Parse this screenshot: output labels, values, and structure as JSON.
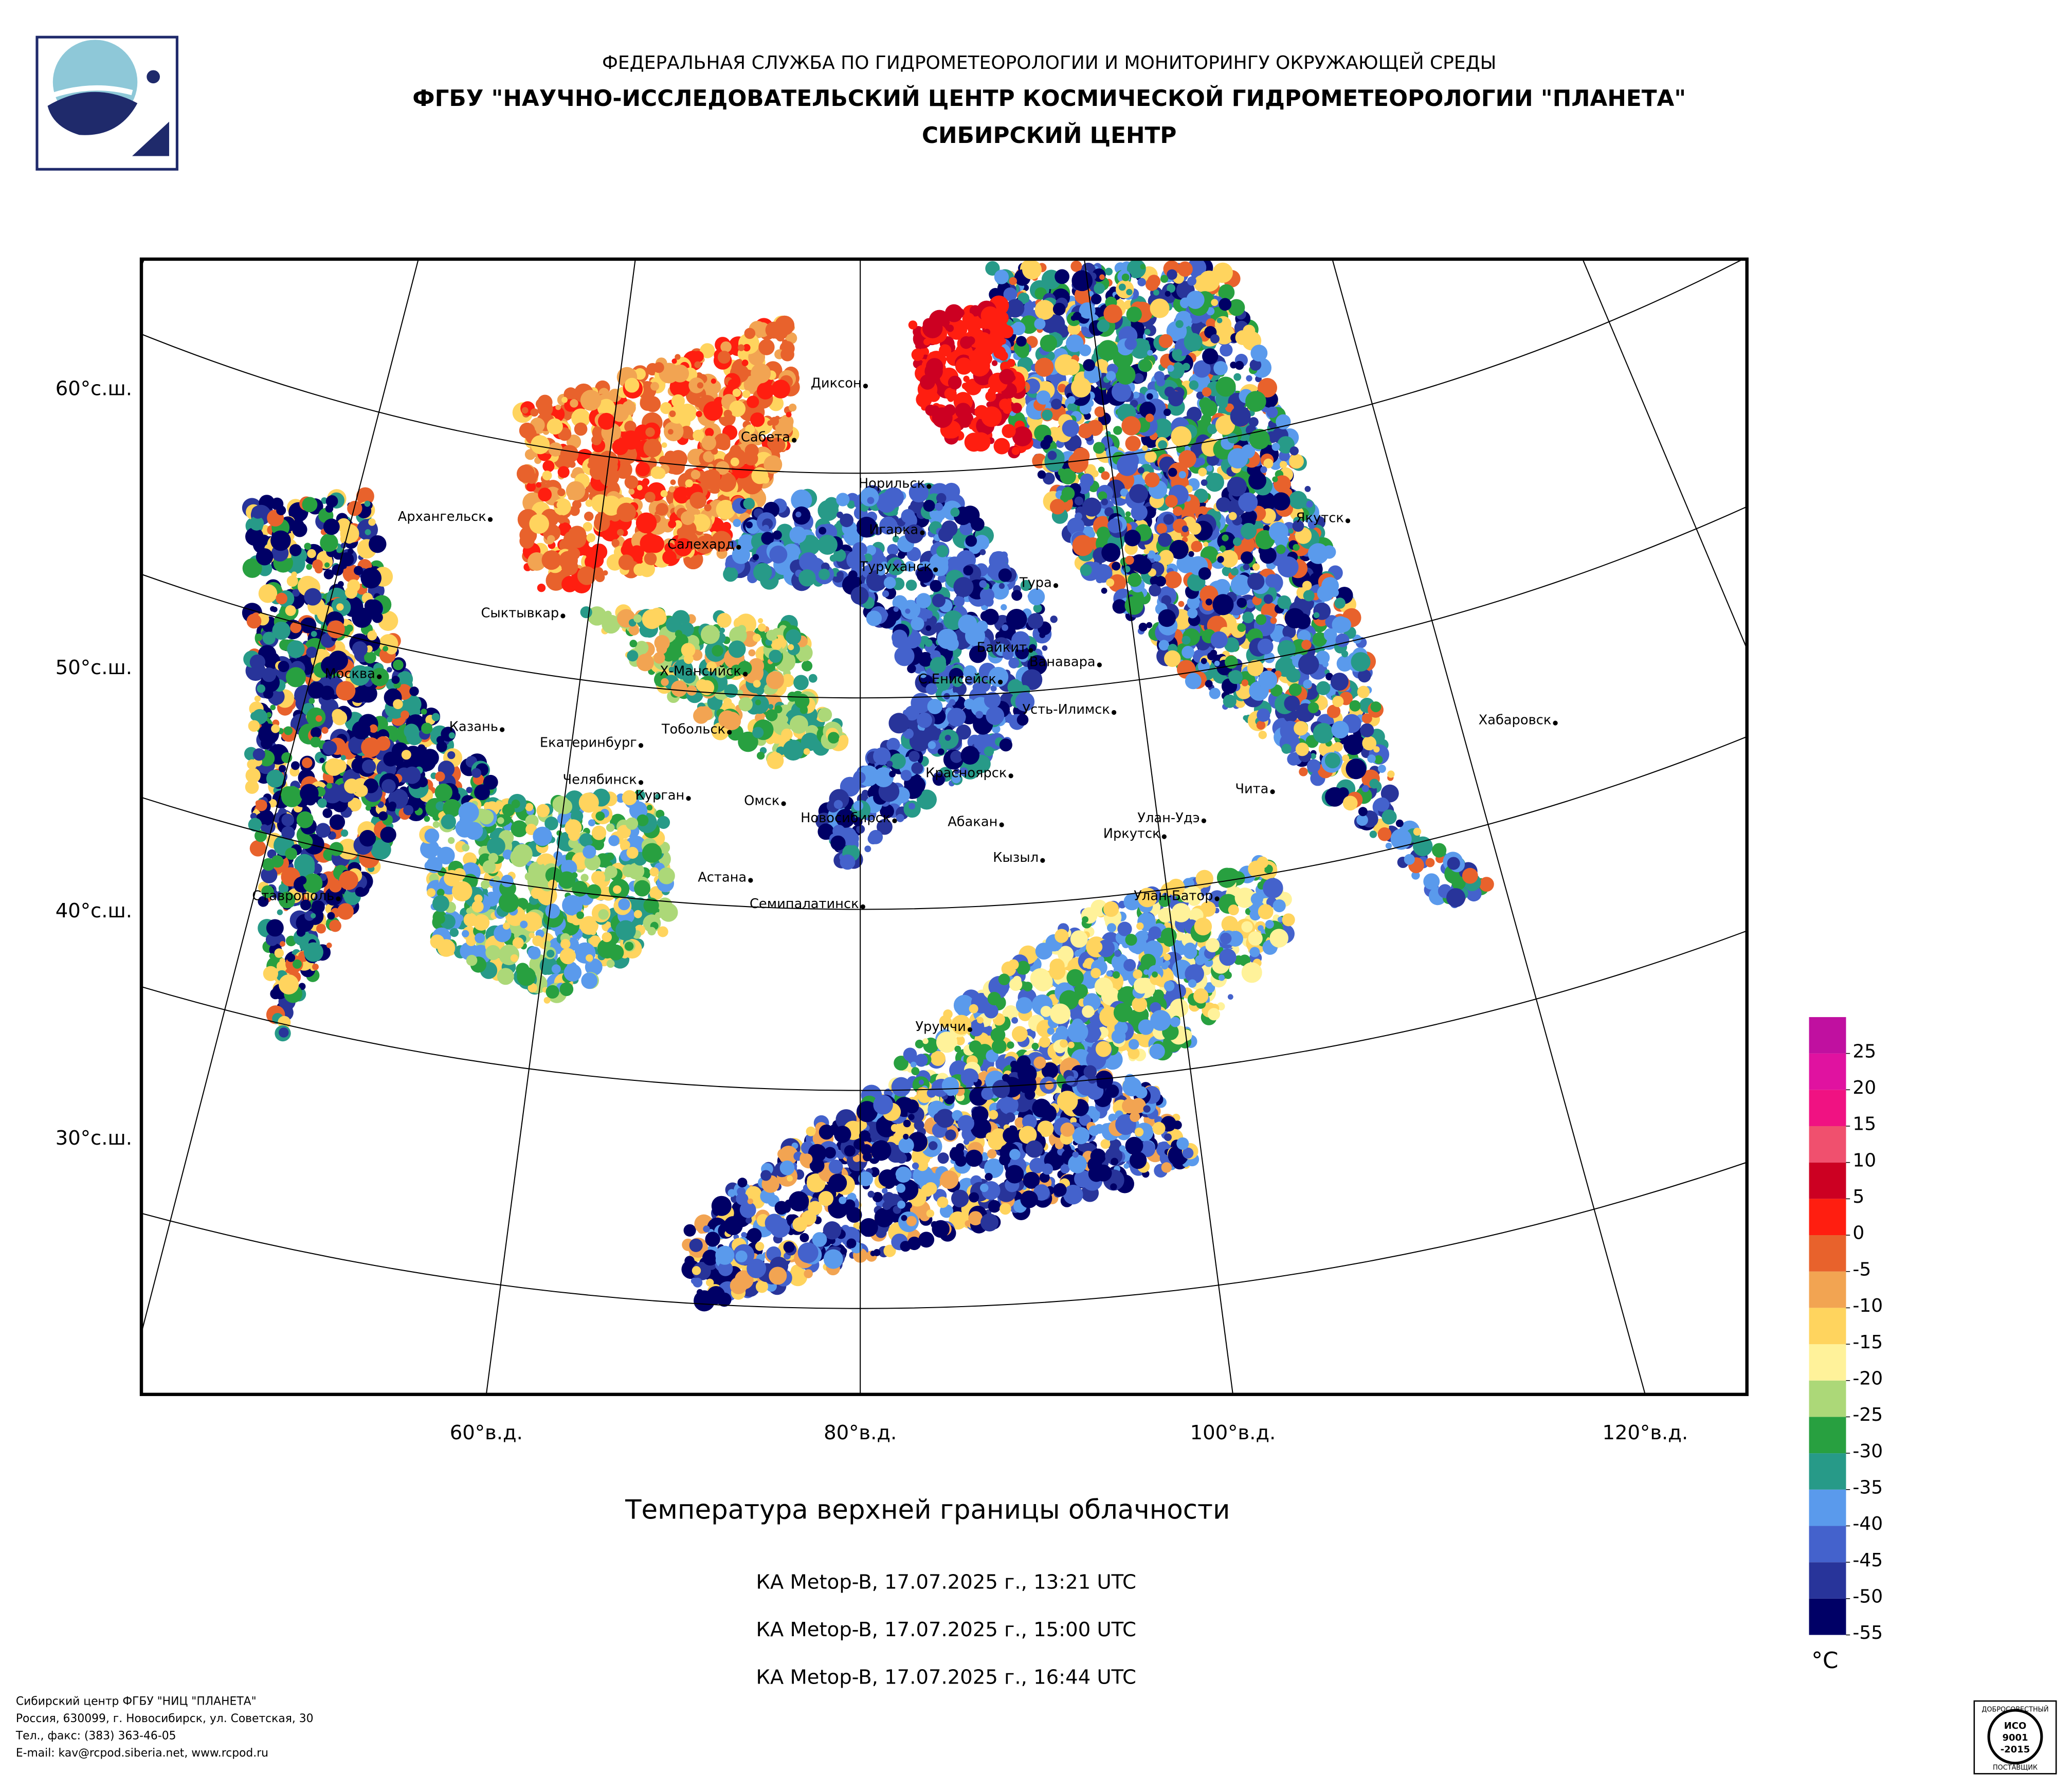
{
  "header": {
    "agency": "ФЕДЕРАЛЬНАЯ СЛУЖБА ПО ГИДРОМЕТЕОРОЛОГИИ И МОНИТОРИНГУ ОКРУЖАЮЩЕЙ СРЕДЫ",
    "institute": "ФГБУ \"НАУЧНО-ИССЛЕДОВАТЕЛЬСКИЙ ЦЕНТР КОСМИЧЕСКОЙ ГИДРОМЕТЕОРОЛОГИИ \"ПЛАНЕТА\"",
    "center": "СИБИРСКИЙ ЦЕНТР"
  },
  "map": {
    "lat_labels": [
      "60°с.ш.",
      "50°с.ш.",
      "40°с.ш.",
      "30°с.ш."
    ],
    "lon_labels": [
      "60°в.д.",
      "80°в.д.",
      "100°в.д.",
      "120°в.д."
    ],
    "cities": [
      "Диксон",
      "Сабета",
      "Норильск",
      "Архангельск",
      "Игарка",
      "Салехард",
      "Якутск",
      "Туруханск",
      "Тура",
      "Сыктывкар",
      "Байкит",
      "Ванавара",
      "Москва",
      "Х-Мансийск",
      "С.Енисейск",
      "Усть-Илимск",
      "Хабаровск",
      "Казань",
      "Тобольск",
      "Екатеринбург",
      "Красноярск",
      "Челябинск",
      "Курган",
      "Чита",
      "Омск",
      "Новосибирск",
      "Улан-Удэ",
      "Абакан",
      "Иркутск",
      "Кызыл",
      "Астана",
      "Ставрополь",
      "Улан-Батор",
      "Семипалатинск",
      "Урумчи"
    ]
  },
  "legend": {
    "unit": "°C",
    "ticks": [
      -55,
      -50,
      -45,
      -40,
      -35,
      -30,
      -25,
      -20,
      -15,
      -10,
      -5,
      0,
      5,
      10,
      15,
      20,
      25
    ],
    "colors": [
      "#000066",
      "#28349a",
      "#4462cc",
      "#5a9aec",
      "#279a88",
      "#28a040",
      "#acd878",
      "#fff29a",
      "#ffd45e",
      "#f2a452",
      "#e8622c",
      "#ff1e10",
      "#cc0022",
      "#f0506e",
      "#f01282",
      "#e012a0",
      "#c010a0"
    ]
  },
  "caption": {
    "title": "Температура верхней границы облачности",
    "passes": [
      "КА Metop-B, 17.07.2025 г., 13:21 UTC",
      "КА Metop-B, 17.07.2025 г., 15:00 UTC",
      "КА Metop-B, 17.07.2025 г., 16:44 UTC"
    ]
  },
  "footer": [
    "Сибирский центр ФГБУ \"НИЦ \"ПЛАНЕТА\"",
    "Россия, 630099, г. Новосибирск, ул. Советская, 30",
    "Тел., факс: (383) 363-46-05",
    "E-mail: kav@rcpod.siberia.net, www.rcpod.ru"
  ],
  "badge": {
    "top": "ДОБРОСОВЕСТНЫЙ",
    "line1": "ИСО",
    "line2": "9001",
    "line3": "-2015",
    "bottom": "ПОСТАВЩИК"
  }
}
